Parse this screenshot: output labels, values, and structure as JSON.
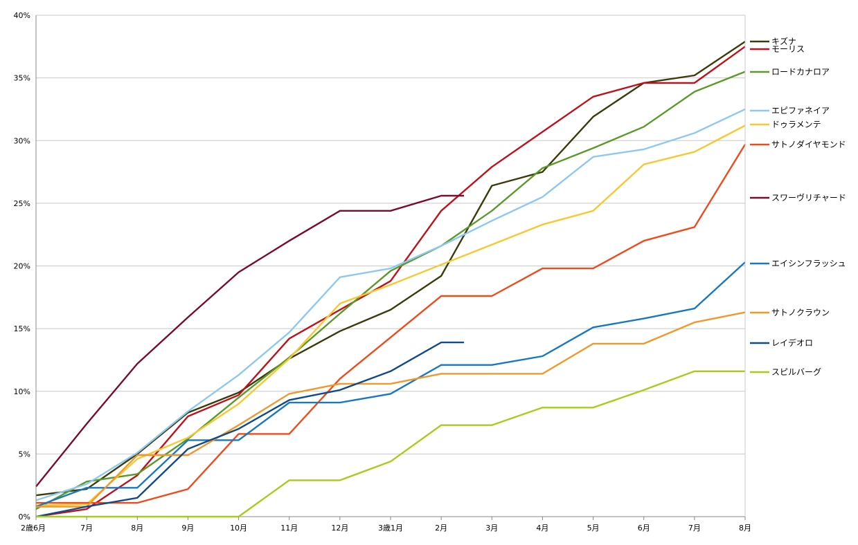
{
  "chart_data": {
    "type": "line",
    "title": "",
    "xlabel": "",
    "ylabel": "",
    "ylim": [
      0,
      40
    ],
    "y_ticks": [
      0,
      5,
      10,
      15,
      20,
      25,
      30,
      35,
      40
    ],
    "y_tick_labels": [
      "0%",
      "5%",
      "10%",
      "15%",
      "20%",
      "25%",
      "30%",
      "35%",
      "40%"
    ],
    "x_categories": [
      "2歳6月",
      "7月",
      "8月",
      "9月",
      "10月",
      "11月",
      "12月",
      "3歳1月",
      "2月",
      "3月",
      "4月",
      "5月",
      "6月",
      "7月",
      "8月"
    ],
    "grid": true,
    "legend_position": "right",
    "series": [
      {
        "name": "キズナ",
        "color": "#3b3a0a",
        "points": [
          [
            0,
            1.7
          ],
          [
            1,
            2.2
          ],
          [
            2,
            5.0
          ],
          [
            3,
            8.3
          ],
          [
            4,
            9.9
          ],
          [
            5,
            12.6
          ],
          [
            6,
            14.8
          ],
          [
            7,
            16.5
          ],
          [
            8,
            19.2
          ],
          [
            9,
            26.4
          ],
          [
            10,
            27.5
          ],
          [
            11,
            31.9
          ],
          [
            12,
            34.6
          ],
          [
            13,
            35.2
          ],
          [
            14,
            37.9
          ]
        ]
      },
      {
        "name": "モーリス",
        "color": "#c0101a",
        "points": [
          [
            0,
            0.0
          ],
          [
            1,
            0.6
          ],
          [
            2,
            3.3
          ],
          [
            3,
            8.0
          ],
          [
            4,
            9.7
          ],
          [
            5,
            14.2
          ],
          [
            6,
            16.5
          ],
          [
            7,
            18.8
          ],
          [
            8,
            24.4
          ],
          [
            9,
            27.9
          ],
          [
            10,
            30.7
          ],
          [
            11,
            33.5
          ],
          [
            12,
            34.6
          ],
          [
            13,
            34.6
          ],
          [
            14,
            37.5
          ]
        ]
      },
      {
        "name": "ロードカナロア",
        "color": "#5a9a28",
        "points": [
          [
            0,
            0.6
          ],
          [
            1,
            2.8
          ],
          [
            2,
            3.4
          ],
          [
            3,
            6.2
          ],
          [
            4,
            9.5
          ],
          [
            5,
            12.7
          ],
          [
            6,
            16.2
          ],
          [
            7,
            19.6
          ],
          [
            8,
            21.6
          ],
          [
            9,
            24.4
          ],
          [
            10,
            27.8
          ],
          [
            11,
            29.4
          ],
          [
            12,
            31.1
          ],
          [
            13,
            33.9
          ],
          [
            14,
            35.5
          ]
        ]
      },
      {
        "name": "エピファネイア",
        "color": "#8cc8f0",
        "points": [
          [
            0,
            1.3
          ],
          [
            1,
            2.6
          ],
          [
            2,
            5.1
          ],
          [
            3,
            8.4
          ],
          [
            4,
            11.3
          ],
          [
            5,
            14.7
          ],
          [
            6,
            19.1
          ],
          [
            7,
            19.8
          ],
          [
            8,
            21.6
          ],
          [
            9,
            23.6
          ],
          [
            10,
            25.5
          ],
          [
            11,
            28.7
          ],
          [
            12,
            29.3
          ],
          [
            13,
            30.6
          ],
          [
            14,
            32.5
          ]
        ]
      },
      {
        "name": "ドゥラメンテ",
        "color": "#f8c830",
        "points": [
          [
            0,
            0.9
          ],
          [
            1,
            1.0
          ],
          [
            2,
            4.6
          ],
          [
            3,
            6.3
          ],
          [
            4,
            9.0
          ],
          [
            5,
            12.6
          ],
          [
            6,
            17.0
          ],
          [
            7,
            18.5
          ],
          [
            8,
            20.1
          ],
          [
            9,
            21.7
          ],
          [
            10,
            23.3
          ],
          [
            11,
            24.4
          ],
          [
            12,
            28.1
          ],
          [
            13,
            29.1
          ],
          [
            14,
            31.2
          ]
        ]
      },
      {
        "name": "サトノダイヤモンド",
        "color": "#f04a1a",
        "points": [
          [
            0,
            1.1
          ],
          [
            1,
            1.1
          ],
          [
            2,
            1.1
          ],
          [
            3,
            2.2
          ],
          [
            4,
            6.6
          ],
          [
            5,
            6.6
          ],
          [
            6,
            11.0
          ],
          [
            7,
            14.3
          ],
          [
            8,
            17.6
          ],
          [
            9,
            17.6
          ],
          [
            10,
            19.8
          ],
          [
            11,
            19.8
          ],
          [
            12,
            22.0
          ],
          [
            13,
            23.1
          ],
          [
            14,
            29.7
          ]
        ]
      },
      {
        "name": "スワーヴリチャード",
        "color": "#7a0a30",
        "points": [
          [
            0,
            2.4
          ],
          [
            1,
            7.4
          ],
          [
            2,
            12.2
          ],
          [
            3,
            15.9
          ],
          [
            4,
            19.5
          ],
          [
            5,
            22.0
          ],
          [
            6,
            24.4
          ],
          [
            7,
            24.4
          ],
          [
            8,
            25.6
          ],
          [
            8.45,
            25.6
          ]
        ]
      },
      {
        "name": "エイシンフラッシュ",
        "color": "#1878c0",
        "points": [
          [
            0,
            0.8
          ],
          [
            1,
            2.3
          ],
          [
            2,
            2.3
          ],
          [
            3,
            6.1
          ],
          [
            4,
            6.1
          ],
          [
            5,
            9.1
          ],
          [
            6,
            9.1
          ],
          [
            7,
            9.8
          ],
          [
            8,
            12.1
          ],
          [
            9,
            12.1
          ],
          [
            10,
            12.8
          ],
          [
            11,
            15.1
          ],
          [
            12,
            15.8
          ],
          [
            13,
            16.6
          ],
          [
            14,
            20.3
          ]
        ]
      },
      {
        "name": "サトノクラウン",
        "color": "#f0982a",
        "points": [
          [
            0,
            0.8
          ],
          [
            1,
            0.8
          ],
          [
            2,
            4.9
          ],
          [
            3,
            4.9
          ],
          [
            4,
            7.3
          ],
          [
            5,
            9.8
          ],
          [
            6,
            10.6
          ],
          [
            7,
            10.6
          ],
          [
            8,
            11.4
          ],
          [
            9,
            11.4
          ],
          [
            10,
            11.4
          ],
          [
            11,
            13.8
          ],
          [
            12,
            13.8
          ],
          [
            13,
            15.5
          ],
          [
            14,
            16.3
          ]
        ]
      },
      {
        "name": "レイデオロ",
        "color": "#104a88",
        "points": [
          [
            0,
            0.0
          ],
          [
            1,
            0.8
          ],
          [
            2,
            1.5
          ],
          [
            3,
            5.4
          ],
          [
            4,
            7.0
          ],
          [
            5,
            9.3
          ],
          [
            6,
            10.1
          ],
          [
            7,
            11.6
          ],
          [
            8,
            13.9
          ],
          [
            8.45,
            13.9
          ]
        ]
      },
      {
        "name": "スピルバーグ",
        "color": "#a8cc1a",
        "points": [
          [
            0,
            0.0
          ],
          [
            1,
            0.0
          ],
          [
            2,
            0.0
          ],
          [
            3,
            0.0
          ],
          [
            4,
            0.0
          ],
          [
            5,
            2.9
          ],
          [
            6,
            2.9
          ],
          [
            7,
            4.4
          ],
          [
            8,
            7.3
          ],
          [
            9,
            7.3
          ],
          [
            10,
            8.7
          ],
          [
            11,
            8.7
          ],
          [
            12,
            10.1
          ],
          [
            13,
            11.6
          ],
          [
            14,
            11.6
          ]
        ]
      }
    ]
  }
}
